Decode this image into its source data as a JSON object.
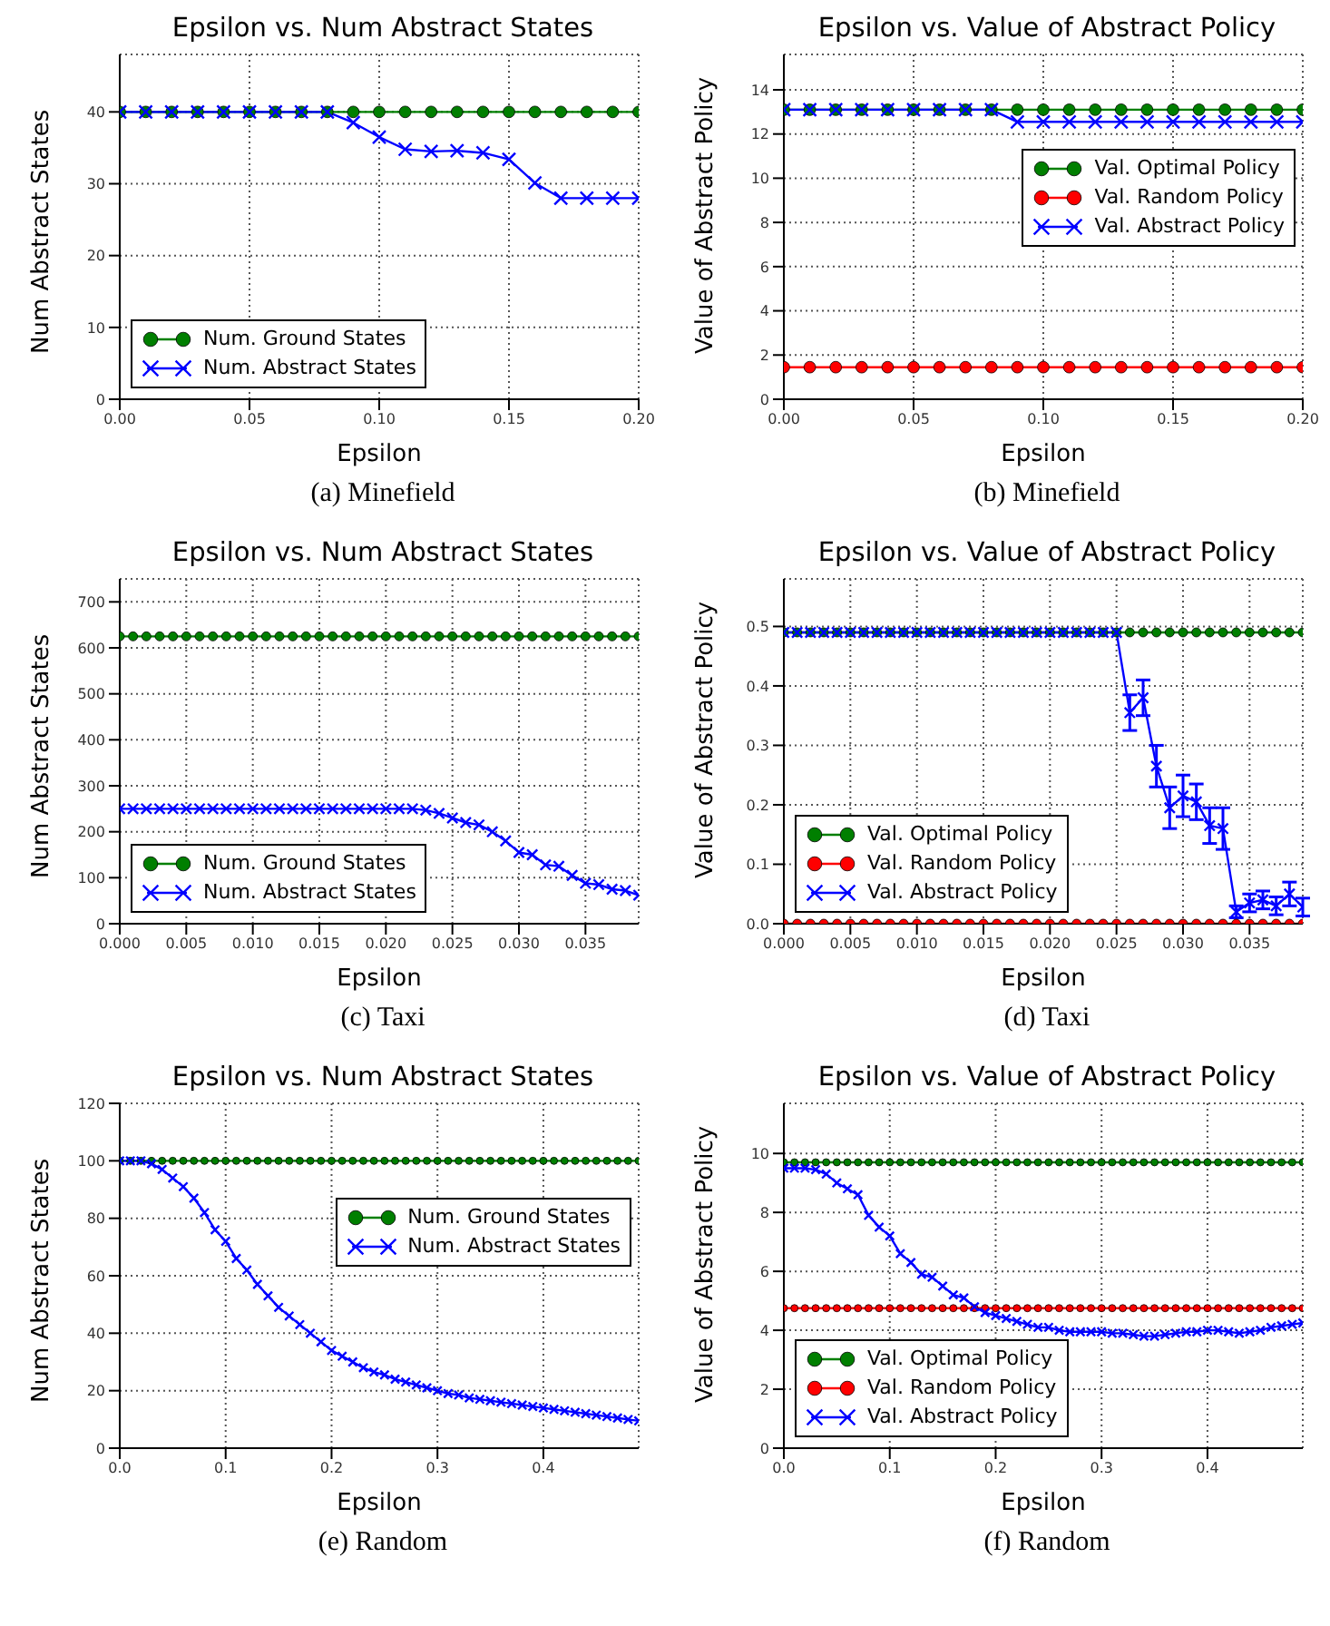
{
  "chart_data": [
    {
      "type": "line",
      "title": "Epsilon vs. Num Abstract States",
      "xlabel": "Epsilon",
      "ylabel": "Num Abstract States",
      "annotations": [
        "(a) Minefield"
      ],
      "grid": true,
      "legend": "bottom left",
      "x": [
        0,
        0.01,
        0.02,
        0.03,
        0.04,
        0.05,
        0.06,
        0.07,
        0.08,
        0.09,
        0.1,
        0.11,
        0.12,
        0.13,
        0.14,
        0.15,
        0.16,
        0.17,
        0.18,
        0.19,
        0.2
      ],
      "xlim": [
        0,
        0.2
      ],
      "xticks": [
        {
          "value": 0,
          "label": "0.00"
        },
        {
          "value": 0.05,
          "label": "0.05"
        },
        {
          "value": 0.1,
          "label": "0.10"
        },
        {
          "value": 0.15,
          "label": "0.15"
        },
        {
          "value": 0.2,
          "label": "0.20"
        }
      ],
      "ylim": [
        0,
        48
      ],
      "yticks": [
        0,
        10,
        20,
        30,
        40
      ],
      "series": [
        {
          "name": "Num. Ground States",
          "color": "#007f00",
          "marker": "circle",
          "values": [
            40,
            40,
            40,
            40,
            40,
            40,
            40,
            40,
            40,
            40,
            40,
            40,
            40,
            40,
            40,
            40,
            40,
            40,
            40,
            40,
            40
          ]
        },
        {
          "name": "Num. Abstract States",
          "color": "#0000ff",
          "marker": "cross",
          "values": [
            40,
            40,
            40,
            40,
            40,
            40,
            40,
            40,
            40,
            38.5,
            36.5,
            34.8,
            34.5,
            34.6,
            34.3,
            33.4,
            30.1,
            28,
            28,
            28,
            28
          ]
        }
      ]
    },
    {
      "type": "line",
      "title": "Epsilon vs. Value of Abstract Policy",
      "xlabel": "Epsilon",
      "ylabel": "Value of Abstract Policy",
      "annotations": [
        "(b) Minefield"
      ],
      "grid": true,
      "legend": "right",
      "x": [
        0,
        0.01,
        0.02,
        0.03,
        0.04,
        0.05,
        0.06,
        0.07,
        0.08,
        0.09,
        0.1,
        0.11,
        0.12,
        0.13,
        0.14,
        0.15,
        0.16,
        0.17,
        0.18,
        0.19,
        0.2
      ],
      "xlim": [
        0,
        0.2
      ],
      "xticks": [
        {
          "value": 0,
          "label": "0.00"
        },
        {
          "value": 0.05,
          "label": "0.05"
        },
        {
          "value": 0.1,
          "label": "0.10"
        },
        {
          "value": 0.15,
          "label": "0.15"
        },
        {
          "value": 0.2,
          "label": "0.20"
        }
      ],
      "ylim": [
        0,
        15.6
      ],
      "yticks": [
        0,
        2,
        4,
        6,
        8,
        10,
        12,
        14
      ],
      "series": [
        {
          "name": "Val. Optimal Policy",
          "color": "#007f00",
          "marker": "circle",
          "values": [
            13.1,
            13.1,
            13.1,
            13.1,
            13.1,
            13.1,
            13.1,
            13.1,
            13.1,
            13.1,
            13.1,
            13.1,
            13.1,
            13.1,
            13.1,
            13.1,
            13.1,
            13.1,
            13.1,
            13.1,
            13.1
          ]
        },
        {
          "name": "Val. Random Policy",
          "color": "#ff0000",
          "marker": "circle",
          "values": [
            1.45,
            1.45,
            1.45,
            1.45,
            1.45,
            1.45,
            1.45,
            1.45,
            1.45,
            1.45,
            1.45,
            1.45,
            1.45,
            1.45,
            1.45,
            1.45,
            1.45,
            1.45,
            1.45,
            1.45,
            1.45
          ]
        },
        {
          "name": "Val. Abstract Policy",
          "color": "#0000ff",
          "marker": "cross",
          "values": [
            13.1,
            13.1,
            13.1,
            13.1,
            13.1,
            13.1,
            13.1,
            13.1,
            13.1,
            12.55,
            12.55,
            12.55,
            12.55,
            12.55,
            12.55,
            12.55,
            12.55,
            12.55,
            12.55,
            12.55,
            12.55
          ]
        }
      ]
    },
    {
      "type": "line",
      "title": "Epsilon vs. Num Abstract States",
      "xlabel": "Epsilon",
      "ylabel": "Num Abstract States",
      "annotations": [
        "(c) Taxi"
      ],
      "grid": true,
      "legend": "bottom left",
      "x": [
        0,
        0.001,
        0.002,
        0.003,
        0.004,
        0.005,
        0.006,
        0.007,
        0.008,
        0.009,
        0.01,
        0.011,
        0.012,
        0.013,
        0.014,
        0.015,
        0.016,
        0.017,
        0.018,
        0.019,
        0.02,
        0.021,
        0.022,
        0.023,
        0.024,
        0.025,
        0.026,
        0.027,
        0.028,
        0.029,
        0.03,
        0.031,
        0.032,
        0.033,
        0.034,
        0.035,
        0.036,
        0.037,
        0.038,
        0.039
      ],
      "xlim": [
        0,
        0.039
      ],
      "xticks": [
        {
          "value": 0,
          "label": "0.000"
        },
        {
          "value": 0.005,
          "label": "0.005"
        },
        {
          "value": 0.01,
          "label": "0.010"
        },
        {
          "value": 0.015,
          "label": "0.015"
        },
        {
          "value": 0.02,
          "label": "0.020"
        },
        {
          "value": 0.025,
          "label": "0.025"
        },
        {
          "value": 0.03,
          "label": "0.030"
        },
        {
          "value": 0.035,
          "label": "0.035"
        }
      ],
      "ylim": [
        0,
        750
      ],
      "yticks": [
        0,
        100,
        200,
        300,
        400,
        500,
        600,
        700
      ],
      "series": [
        {
          "name": "Num. Ground States",
          "color": "#007f00",
          "marker": "circle",
          "values": [
            625,
            625,
            625,
            625,
            625,
            625,
            625,
            625,
            625,
            625,
            625,
            625,
            625,
            625,
            625,
            625,
            625,
            625,
            625,
            625,
            625,
            625,
            625,
            625,
            625,
            625,
            625,
            625,
            625,
            625,
            625,
            625,
            625,
            625,
            625,
            625,
            625,
            625,
            625,
            625
          ]
        },
        {
          "name": "Num. Abstract States",
          "color": "#0000ff",
          "marker": "cross",
          "values": [
            250,
            250,
            250,
            250,
            250,
            250,
            250,
            250,
            250,
            250,
            250,
            250,
            250,
            250,
            250,
            250,
            250,
            250,
            250,
            250,
            250,
            250,
            250,
            247,
            240,
            230,
            220,
            215,
            200,
            180,
            155,
            150,
            128,
            125,
            105,
            88,
            85,
            75,
            72,
            62
          ]
        }
      ]
    },
    {
      "type": "line",
      "title": "Epsilon vs. Value of Abstract Policy",
      "xlabel": "Epsilon",
      "ylabel": "Value of Abstract Policy",
      "annotations": [
        "(d) Taxi"
      ],
      "grid": true,
      "legend": "bottom left",
      "x": [
        0,
        0.001,
        0.002,
        0.003,
        0.004,
        0.005,
        0.006,
        0.007,
        0.008,
        0.009,
        0.01,
        0.011,
        0.012,
        0.013,
        0.014,
        0.015,
        0.016,
        0.017,
        0.018,
        0.019,
        0.02,
        0.021,
        0.022,
        0.023,
        0.024,
        0.025,
        0.026,
        0.027,
        0.028,
        0.029,
        0.03,
        0.031,
        0.032,
        0.033,
        0.034,
        0.035,
        0.036,
        0.037,
        0.038,
        0.039
      ],
      "xlim": [
        0,
        0.039
      ],
      "xticks": [
        {
          "value": 0,
          "label": "0.000"
        },
        {
          "value": 0.005,
          "label": "0.005"
        },
        {
          "value": 0.01,
          "label": "0.010"
        },
        {
          "value": 0.015,
          "label": "0.015"
        },
        {
          "value": 0.02,
          "label": "0.020"
        },
        {
          "value": 0.025,
          "label": "0.025"
        },
        {
          "value": 0.03,
          "label": "0.030"
        },
        {
          "value": 0.035,
          "label": "0.035"
        }
      ],
      "ylim": [
        0,
        0.58
      ],
      "yticks": [
        {
          "value": 0,
          "label": "0.0"
        },
        0.1,
        0.2,
        0.3,
        0.4,
        0.5
      ],
      "series": [
        {
          "name": "Val. Optimal Policy",
          "color": "#007f00",
          "marker": "circle",
          "values": [
            0.49,
            0.49,
            0.49,
            0.49,
            0.49,
            0.49,
            0.49,
            0.49,
            0.49,
            0.49,
            0.49,
            0.49,
            0.49,
            0.49,
            0.49,
            0.49,
            0.49,
            0.49,
            0.49,
            0.49,
            0.49,
            0.49,
            0.49,
            0.49,
            0.49,
            0.49,
            0.49,
            0.49,
            0.49,
            0.49,
            0.49,
            0.49,
            0.49,
            0.49,
            0.49,
            0.49,
            0.49,
            0.49,
            0.49,
            0.49
          ]
        },
        {
          "name": "Val. Random Policy",
          "color": "#ff0000",
          "marker": "circle",
          "values": [
            0,
            0,
            0,
            0,
            0,
            0,
            0,
            0,
            0,
            0,
            0,
            0,
            0,
            0,
            0,
            0,
            0,
            0,
            0,
            0,
            0,
            0,
            0,
            0,
            0,
            0,
            0,
            0,
            0,
            0,
            0,
            0,
            0,
            0,
            0,
            0,
            0,
            0,
            0,
            0
          ]
        },
        {
          "name": "Val. Abstract Policy",
          "color": "#0000ff",
          "marker": "cross",
          "values": [
            0.49,
            0.49,
            0.49,
            0.49,
            0.49,
            0.49,
            0.49,
            0.49,
            0.49,
            0.49,
            0.49,
            0.49,
            0.49,
            0.49,
            0.49,
            0.49,
            0.49,
            0.49,
            0.49,
            0.49,
            0.49,
            0.49,
            0.49,
            0.49,
            0.49,
            0.49,
            0.355,
            0.38,
            0.265,
            0.195,
            0.215,
            0.205,
            0.165,
            0.16,
            0.02,
            0.035,
            0.04,
            0.03,
            0.05,
            0.028
          ],
          "errors": [
            null,
            null,
            null,
            null,
            null,
            null,
            null,
            null,
            null,
            null,
            null,
            null,
            null,
            null,
            null,
            null,
            null,
            null,
            null,
            null,
            null,
            null,
            null,
            null,
            null,
            null,
            0.03,
            0.03,
            0.035,
            0.035,
            0.035,
            0.03,
            0.03,
            0.035,
            0.01,
            0.015,
            0.015,
            0.015,
            0.02,
            0.015
          ]
        }
      ]
    },
    {
      "type": "line",
      "title": "Epsilon vs. Num Abstract States",
      "xlabel": "Epsilon",
      "ylabel": "Num Abstract States",
      "annotations": [
        "(e) Random"
      ],
      "grid": true,
      "legend": "right",
      "x": [
        0,
        0.01,
        0.02,
        0.03,
        0.04,
        0.05,
        0.06,
        0.07,
        0.08,
        0.09,
        0.1,
        0.11,
        0.12,
        0.13,
        0.14,
        0.15,
        0.16,
        0.17,
        0.18,
        0.19,
        0.2,
        0.21,
        0.22,
        0.23,
        0.24,
        0.25,
        0.26,
        0.27,
        0.28,
        0.29,
        0.3,
        0.31,
        0.32,
        0.33,
        0.34,
        0.35,
        0.36,
        0.37,
        0.38,
        0.39,
        0.4,
        0.41,
        0.42,
        0.43,
        0.44,
        0.45,
        0.46,
        0.47,
        0.48,
        0.49
      ],
      "xlim": [
        0,
        0.49
      ],
      "xticks": [
        {
          "value": 0,
          "label": "0.0"
        },
        0.1,
        0.2,
        0.3,
        0.4
      ],
      "ylim": [
        0,
        120
      ],
      "yticks": [
        0,
        20,
        40,
        60,
        80,
        100,
        120
      ],
      "series": [
        {
          "name": "Num. Ground States",
          "color": "#007f00",
          "marker": "circle",
          "values": [
            100,
            100,
            100,
            100,
            100,
            100,
            100,
            100,
            100,
            100,
            100,
            100,
            100,
            100,
            100,
            100,
            100,
            100,
            100,
            100,
            100,
            100,
            100,
            100,
            100,
            100,
            100,
            100,
            100,
            100,
            100,
            100,
            100,
            100,
            100,
            100,
            100,
            100,
            100,
            100,
            100,
            100,
            100,
            100,
            100,
            100,
            100,
            100,
            100,
            100
          ]
        },
        {
          "name": "Num. Abstract States",
          "color": "#0000ff",
          "marker": "cross",
          "values": [
            100,
            100,
            100,
            99,
            97,
            94,
            91,
            87,
            82,
            76,
            72,
            66,
            62,
            57,
            53,
            49,
            46,
            43,
            40,
            37,
            34,
            32,
            30,
            28,
            26.5,
            25.5,
            24,
            23,
            22,
            21,
            20,
            19,
            18.5,
            17.5,
            17,
            16.5,
            16,
            15.5,
            15,
            14.5,
            14,
            13.5,
            13,
            12.5,
            12,
            11.5,
            11,
            10.5,
            10,
            9.5
          ]
        }
      ]
    },
    {
      "type": "line",
      "title": "Epsilon vs. Value of Abstract Policy",
      "xlabel": "Epsilon",
      "ylabel": "Value of Abstract Policy",
      "annotations": [
        "(f) Random"
      ],
      "grid": true,
      "legend": "bottom left",
      "x": [
        0,
        0.01,
        0.02,
        0.03,
        0.04,
        0.05,
        0.06,
        0.07,
        0.08,
        0.09,
        0.1,
        0.11,
        0.12,
        0.13,
        0.14,
        0.15,
        0.16,
        0.17,
        0.18,
        0.19,
        0.2,
        0.21,
        0.22,
        0.23,
        0.24,
        0.25,
        0.26,
        0.27,
        0.28,
        0.29,
        0.3,
        0.31,
        0.32,
        0.33,
        0.34,
        0.35,
        0.36,
        0.37,
        0.38,
        0.39,
        0.4,
        0.41,
        0.42,
        0.43,
        0.44,
        0.45,
        0.46,
        0.47,
        0.48,
        0.49
      ],
      "xlim": [
        0,
        0.49
      ],
      "xticks": [
        {
          "value": 0,
          "label": "0.0"
        },
        0.1,
        0.2,
        0.3,
        0.4
      ],
      "ylim": [
        0,
        11.7
      ],
      "yticks": [
        0,
        2,
        4,
        6,
        8,
        10
      ],
      "series": [
        {
          "name": "Val. Optimal Policy",
          "color": "#007f00",
          "marker": "circle",
          "values": [
            9.7,
            9.7,
            9.7,
            9.7,
            9.7,
            9.7,
            9.7,
            9.7,
            9.7,
            9.7,
            9.7,
            9.7,
            9.7,
            9.7,
            9.7,
            9.7,
            9.7,
            9.7,
            9.7,
            9.7,
            9.7,
            9.7,
            9.7,
            9.7,
            9.7,
            9.7,
            9.7,
            9.7,
            9.7,
            9.7,
            9.7,
            9.7,
            9.7,
            9.7,
            9.7,
            9.7,
            9.7,
            9.7,
            9.7,
            9.7,
            9.7,
            9.7,
            9.7,
            9.7,
            9.7,
            9.7,
            9.7,
            9.7,
            9.7,
            9.7
          ]
        },
        {
          "name": "Val. Random Policy",
          "color": "#ff0000",
          "marker": "circle",
          "values": [
            4.75,
            4.75,
            4.75,
            4.75,
            4.75,
            4.75,
            4.75,
            4.75,
            4.75,
            4.75,
            4.75,
            4.75,
            4.75,
            4.75,
            4.75,
            4.75,
            4.75,
            4.75,
            4.75,
            4.75,
            4.75,
            4.75,
            4.75,
            4.75,
            4.75,
            4.75,
            4.75,
            4.75,
            4.75,
            4.75,
            4.75,
            4.75,
            4.75,
            4.75,
            4.75,
            4.75,
            4.75,
            4.75,
            4.75,
            4.75,
            4.75,
            4.75,
            4.75,
            4.75,
            4.75,
            4.75,
            4.75,
            4.75,
            4.75,
            4.75
          ]
        },
        {
          "name": "Val. Abstract Policy",
          "color": "#0000ff",
          "marker": "cross",
          "values": [
            9.5,
            9.5,
            9.5,
            9.45,
            9.3,
            9.0,
            8.8,
            8.6,
            7.9,
            7.5,
            7.2,
            6.6,
            6.3,
            5.9,
            5.8,
            5.5,
            5.2,
            5.1,
            4.8,
            4.6,
            4.5,
            4.4,
            4.3,
            4.2,
            4.1,
            4.1,
            4.0,
            3.95,
            3.95,
            3.95,
            3.95,
            3.9,
            3.9,
            3.85,
            3.8,
            3.8,
            3.85,
            3.9,
            3.95,
            3.95,
            4.0,
            4.0,
            3.95,
            3.9,
            3.95,
            4.0,
            4.1,
            4.15,
            4.2,
            4.25
          ]
        }
      ]
    }
  ]
}
